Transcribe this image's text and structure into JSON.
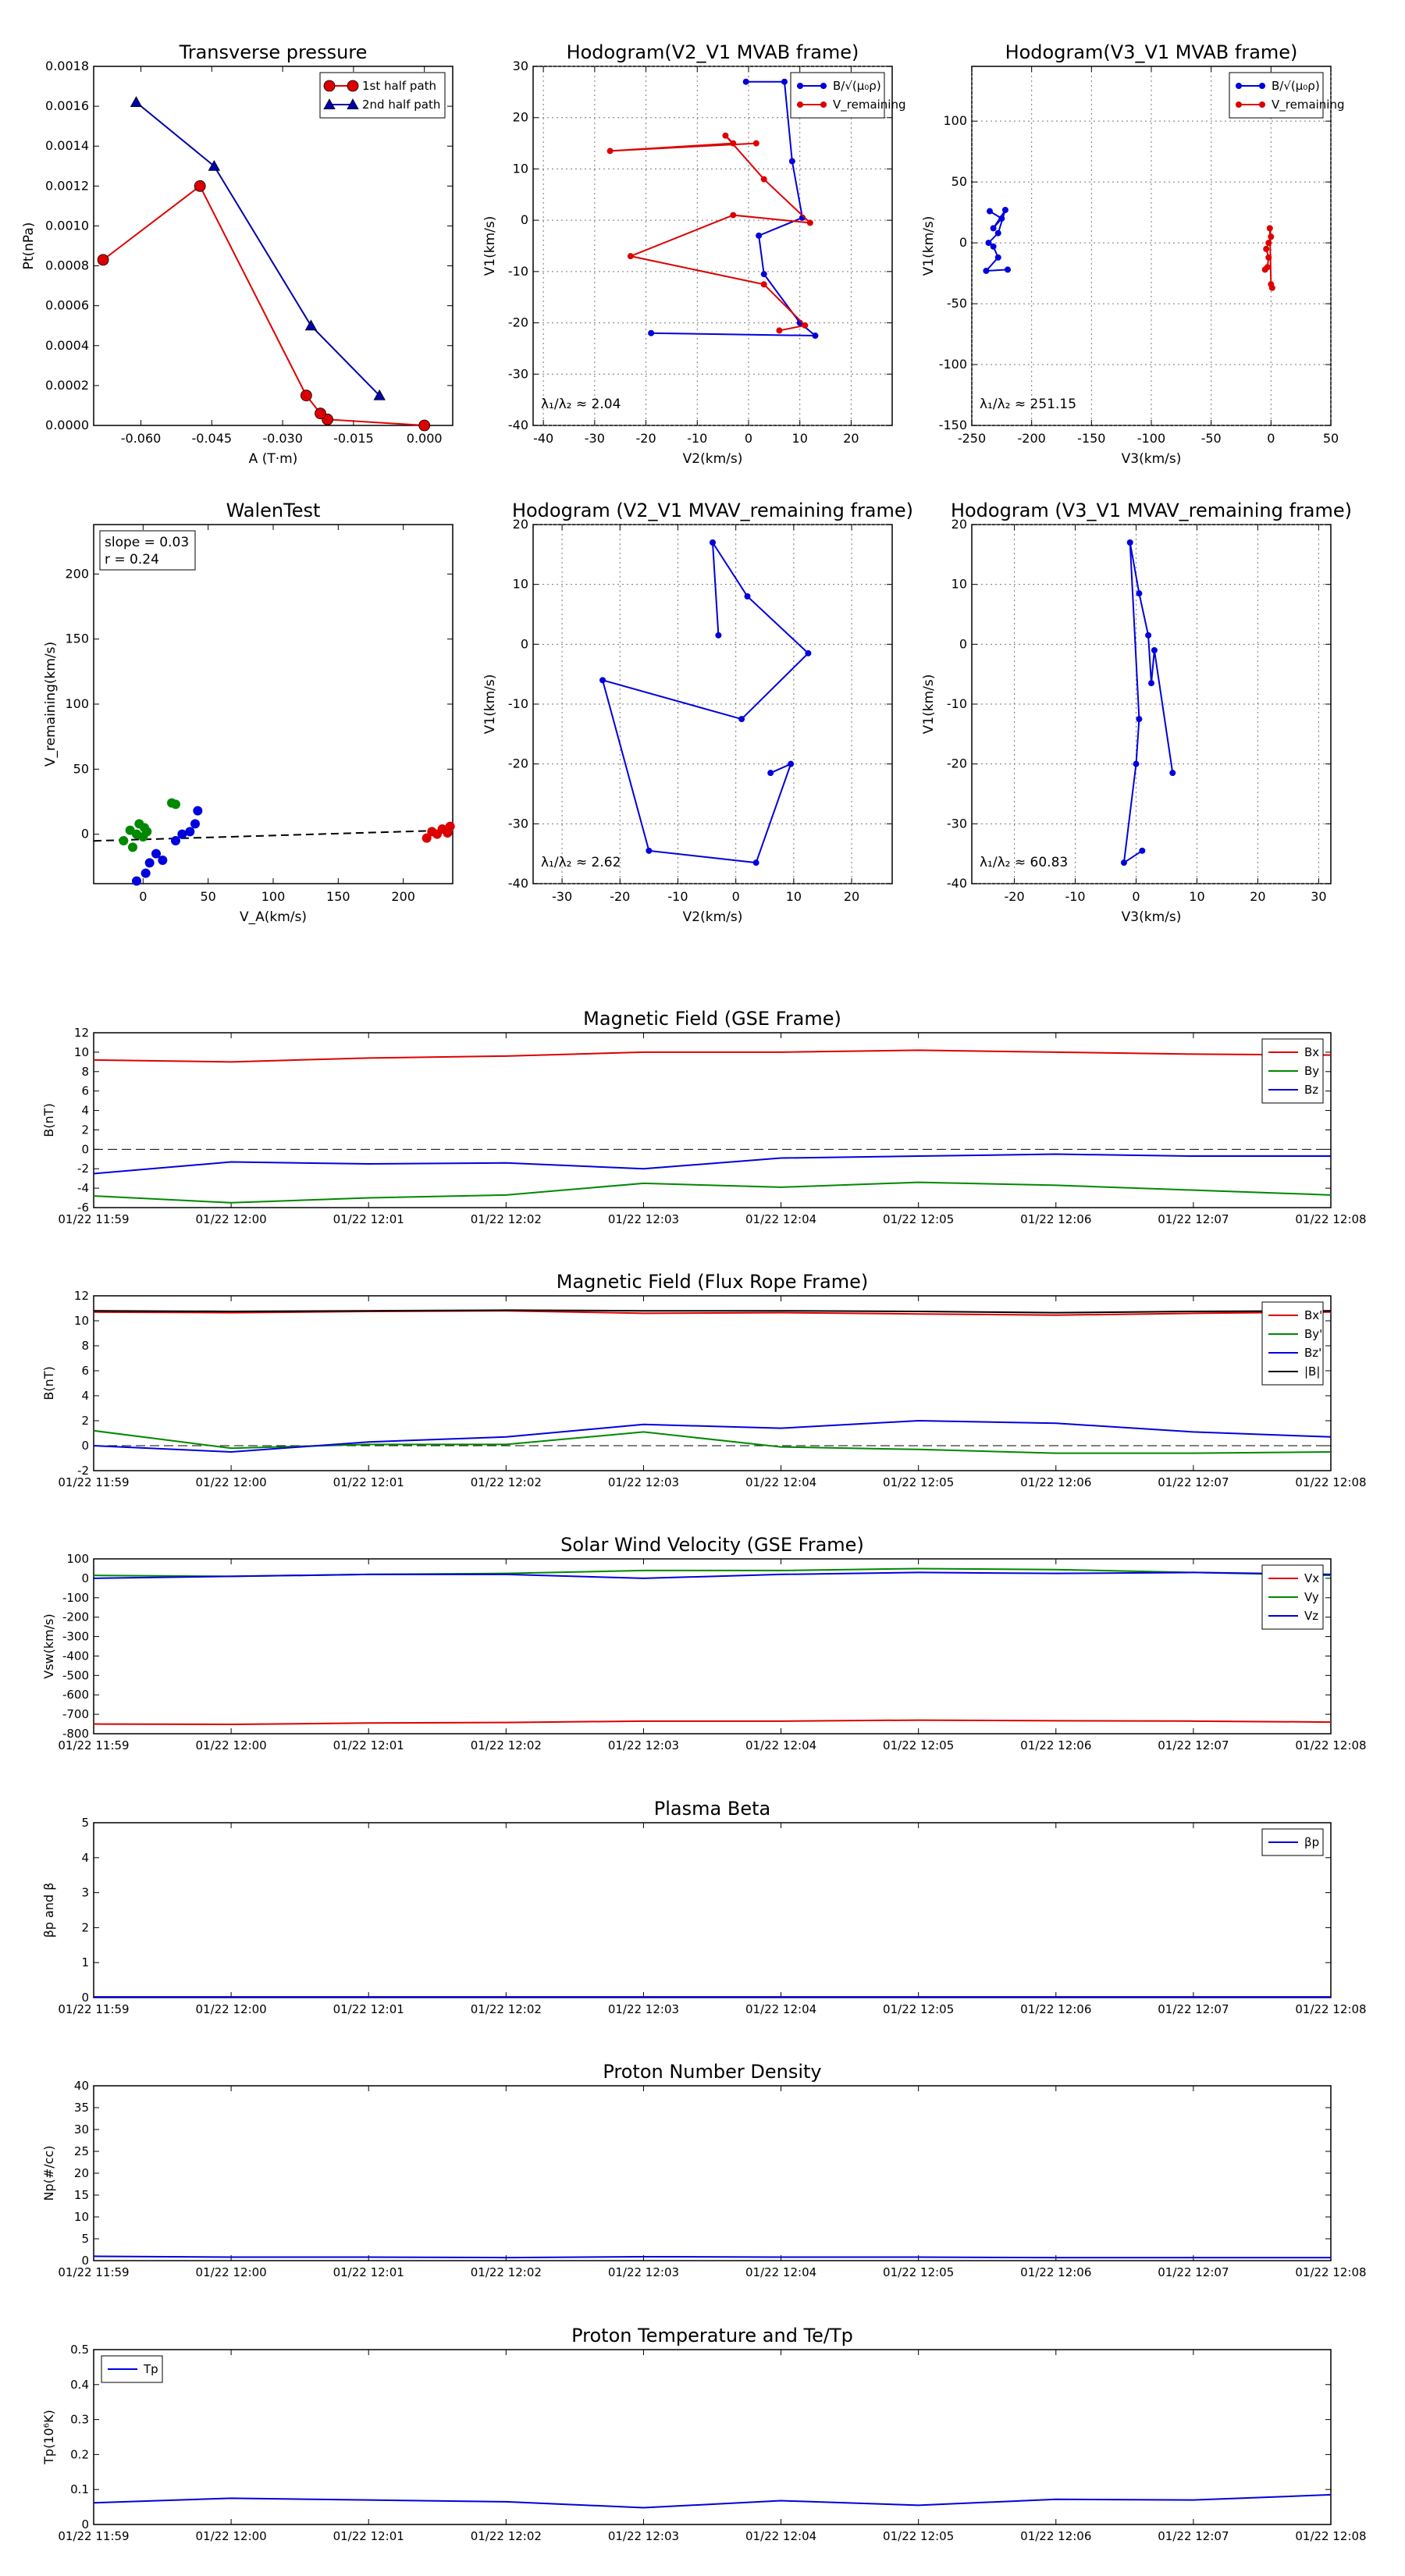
{
  "chart_data": [
    {
      "id": "tp",
      "type": "scatter",
      "title": "Transverse pressure",
      "xlabel": "A (T·m)",
      "ylabel": "Pt(nPa)",
      "xlim": [
        -0.07,
        0.006
      ],
      "ylim": [
        0,
        0.0018
      ],
      "xticks": [
        -0.06,
        -0.045,
        -0.03,
        -0.015,
        0.0
      ],
      "xticklabels": [
        "-0.060",
        "-0.045",
        "-0.030",
        "-0.015",
        "0.000"
      ],
      "yticks": [
        0,
        0.0002,
        0.0004,
        0.0006,
        0.0008,
        0.001,
        0.0012,
        0.0014,
        0.0016,
        0.0018
      ],
      "yticklabels": [
        "0.0000",
        "0.0002",
        "0.0004",
        "0.0006",
        "0.0008",
        "0.0010",
        "0.0012",
        "0.0014",
        "0.0016",
        "0.0018"
      ],
      "grid": false,
      "legend": "top-right",
      "series": [
        {
          "name": "1st half path",
          "color": "#dd0000",
          "marker": "circle",
          "x": [
            0.0,
            -0.0205,
            -0.022,
            -0.025,
            -0.0475,
            -0.068
          ],
          "y": [
            0.0,
            3e-05,
            6e-05,
            0.00015,
            0.0012,
            0.00083
          ]
        },
        {
          "name": "2nd half path",
          "color": "#0000aa",
          "marker": "triangle",
          "x": [
            -0.061,
            -0.0445,
            -0.024,
            -0.0095
          ],
          "y": [
            0.00162,
            0.0013,
            0.0005,
            0.00015
          ]
        }
      ]
    },
    {
      "id": "hodo12",
      "type": "line",
      "title": "Hodogram(V2_V1 MVAB frame)",
      "xlabel": "V2(km/s)",
      "ylabel": "V1(km/s)",
      "xlim": [
        -42,
        28
      ],
      "ylim": [
        -40,
        30
      ],
      "xticks": [
        -40,
        -30,
        -20,
        -10,
        0,
        10,
        20
      ],
      "yticks": [
        -40,
        -30,
        -20,
        -10,
        0,
        10,
        20,
        30
      ],
      "grid": true,
      "legend": "top-right",
      "annotation": "λ₁/λ₂ ≈ 2.04",
      "series": [
        {
          "name": "B/√(μ₀ρ)",
          "color": "#0000dd",
          "x": [
            -0.5,
            7,
            8.5,
            10.5,
            2,
            3,
            10,
            13,
            -19
          ],
          "y": [
            27,
            27,
            11.5,
            0.5,
            -3,
            -10.5,
            -20,
            -22.5,
            -22
          ]
        },
        {
          "name": "V_remaining",
          "color": "#dd0000",
          "x": [
            6,
            11,
            3,
            -23,
            -3,
            12,
            3,
            -4.5,
            -3,
            -27,
            1.5
          ],
          "y": [
            -21.5,
            -20.5,
            -12.5,
            -7,
            1,
            -0.5,
            8,
            16.5,
            15,
            13.5,
            15
          ]
        }
      ]
    },
    {
      "id": "hodo13",
      "type": "line",
      "title": "Hodogram(V3_V1 MVAB frame)",
      "xlabel": "V3(km/s)",
      "ylabel": "V1(km/s)",
      "xlim": [
        -250,
        50
      ],
      "ylim": [
        -150,
        145
      ],
      "xticks": [
        -250,
        -200,
        -150,
        -100,
        -50,
        0,
        50
      ],
      "yticks": [
        -150,
        -100,
        -50,
        0,
        50,
        100
      ],
      "grid": true,
      "legend": "top-right",
      "annotation": "λ₁/λ₂ ≈ 251.15",
      "series": [
        {
          "name": "B/√(μ₀ρ)",
          "color": "#0000dd",
          "x": [
            -235,
            -225,
            -232,
            -222,
            -228,
            -236,
            -232,
            -228,
            -238,
            -220
          ],
          "y": [
            26,
            20,
            12,
            27,
            8,
            0,
            -3,
            -12,
            -23,
            -22
          ]
        },
        {
          "name": "V_remaining",
          "color": "#dd0000",
          "x": [
            -5,
            -3,
            -2,
            -4,
            -2,
            0,
            -1,
            0,
            1
          ],
          "y": [
            -22,
            -20,
            -12,
            -5,
            0,
            5,
            12,
            -34,
            -37
          ]
        }
      ]
    },
    {
      "id": "walen",
      "type": "scatter",
      "title": "WalenTest",
      "xlabel": "V_A(km/s)",
      "ylabel": "V_remaining(km/s)",
      "xlim": [
        -38,
        238
      ],
      "ylim": [
        -38,
        238
      ],
      "xticks": [
        0,
        50,
        100,
        150,
        200
      ],
      "yticks": [
        0,
        50,
        100,
        150,
        200
      ],
      "grid": false,
      "slope_text": "slope = 0.03",
      "r_text": "r = 0.24",
      "fit": {
        "slope": 0.03,
        "intercept": -4
      },
      "series": [
        {
          "color": "#008800",
          "x": [
            -15,
            -10,
            -8,
            -5,
            -3,
            0,
            1,
            3,
            22,
            25
          ],
          "y": [
            -5,
            3,
            -10,
            0,
            8,
            -2,
            5,
            2,
            24,
            23
          ]
        },
        {
          "color": "#0000dd",
          "x": [
            -5,
            2,
            5,
            10,
            15,
            25,
            30,
            36,
            40,
            42
          ],
          "y": [
            -36,
            -30,
            -22,
            -15,
            -20,
            -5,
            0,
            2,
            8,
            18
          ]
        },
        {
          "color": "#dd0000",
          "x": [
            218,
            222,
            226,
            230,
            234,
            236
          ],
          "y": [
            -3,
            2,
            0,
            4,
            1,
            6
          ]
        }
      ]
    },
    {
      "id": "hodo12r",
      "type": "line",
      "title": "Hodogram (V2_V1 MVAV_remaining frame)",
      "xlabel": "V2(km/s)",
      "ylabel": "V1(km/s)",
      "xlim": [
        -35,
        27
      ],
      "ylim": [
        -40,
        20
      ],
      "xticks": [
        -30,
        -20,
        -10,
        0,
        10,
        20
      ],
      "yticks": [
        -40,
        -30,
        -20,
        -10,
        0,
        10,
        20
      ],
      "grid": true,
      "annotation": "λ₁/λ₂ ≈ 2.62",
      "series": [
        {
          "color": "#0000dd",
          "x": [
            6,
            9.5,
            3.5,
            -15,
            -23,
            1,
            12.5,
            2,
            -4,
            -3
          ],
          "y": [
            -21.5,
            -20,
            -36.5,
            -34.5,
            -6,
            -12.5,
            -1.5,
            8,
            17,
            1.5
          ]
        }
      ]
    },
    {
      "id": "hodo13r",
      "type": "line",
      "title": "Hodogram (V3_V1 MVAV_remaining frame)",
      "xlabel": "V3(km/s)",
      "ylabel": "V1(km/s)",
      "xlim": [
        -27,
        32
      ],
      "ylim": [
        -40,
        20
      ],
      "xticks": [
        -20,
        -10,
        0,
        10,
        20,
        30
      ],
      "yticks": [
        -40,
        -30,
        -20,
        -10,
        0,
        10,
        20
      ],
      "grid": true,
      "annotation": "λ₁/λ₂ ≈ 60.83",
      "series": [
        {
          "color": "#0000dd",
          "x": [
            6,
            3,
            2.5,
            2,
            0.5,
            -1,
            0.5,
            0,
            -2,
            1
          ],
          "y": [
            -21.5,
            -1,
            -6.5,
            1.5,
            8.5,
            17,
            -12.5,
            -20,
            -36.5,
            -34.5
          ]
        }
      ]
    },
    {
      "id": "bgse",
      "type": "line",
      "title": "Magnetic Field (GSE Frame)",
      "ylabel": "B(nT)",
      "x": [
        "01/22 11:59",
        "01/22 12:00",
        "01/22 12:01",
        "01/22 12:02",
        "01/22 12:03",
        "01/22 12:04",
        "01/22 12:05",
        "01/22 12:06",
        "01/22 12:07",
        "01/22 12:08"
      ],
      "ylim": [
        -6,
        12
      ],
      "yticks": [
        -6,
        -4,
        -2,
        0,
        2,
        4,
        6,
        8,
        10,
        12
      ],
      "zero_line": true,
      "legend": "top-right",
      "series": [
        {
          "name": "Bx",
          "color": "#dd0000",
          "values": [
            9.2,
            9.0,
            9.4,
            9.6,
            10.0,
            10.0,
            10.2,
            10.0,
            9.8,
            9.7
          ]
        },
        {
          "name": "By",
          "color": "#008800",
          "values": [
            -4.8,
            -5.5,
            -5.0,
            -4.7,
            -3.5,
            -3.9,
            -3.4,
            -3.7,
            -4.2,
            -4.7
          ]
        },
        {
          "name": "Bz",
          "color": "#0000dd",
          "values": [
            -2.5,
            -1.3,
            -1.5,
            -1.4,
            -2.0,
            -0.9,
            -0.7,
            -0.5,
            -0.7,
            -0.7
          ]
        }
      ]
    },
    {
      "id": "bfr",
      "type": "line",
      "title": "Magnetic Field (Flux Rope Frame)",
      "ylabel": "B(nT)",
      "x": [
        "01/22 11:59",
        "01/22 12:00",
        "01/22 12:01",
        "01/22 12:02",
        "01/22 12:03",
        "01/22 12:04",
        "01/22 12:05",
        "01/22 12:06",
        "01/22 12:07",
        "01/22 12:08"
      ],
      "ylim": [
        -2,
        12
      ],
      "yticks": [
        -2,
        0,
        2,
        4,
        6,
        8,
        10,
        12
      ],
      "zero_line": true,
      "legend": "top-right",
      "series": [
        {
          "name": "Bx'",
          "color": "#dd0000",
          "values": [
            10.7,
            10.65,
            10.75,
            10.8,
            10.6,
            10.65,
            10.55,
            10.45,
            10.6,
            10.7
          ]
        },
        {
          "name": "By'",
          "color": "#008800",
          "values": [
            1.2,
            -0.2,
            0.1,
            0.1,
            1.1,
            -0.1,
            -0.3,
            -0.6,
            -0.6,
            -0.5
          ]
        },
        {
          "name": "Bz'",
          "color": "#0000dd",
          "values": [
            0.0,
            -0.5,
            0.3,
            0.7,
            1.7,
            1.4,
            2.0,
            1.8,
            1.1,
            0.7
          ]
        },
        {
          "name": "|B|",
          "color": "#000000",
          "values": [
            10.8,
            10.75,
            10.8,
            10.85,
            10.8,
            10.8,
            10.75,
            10.65,
            10.75,
            10.8
          ]
        }
      ]
    },
    {
      "id": "vsw",
      "type": "line",
      "title": "Solar Wind Velocity (GSE Frame)",
      "ylabel": "Vsw(km/s)",
      "x": [
        "01/22 11:59",
        "01/22 12:00",
        "01/22 12:01",
        "01/22 12:02",
        "01/22 12:03",
        "01/22 12:04",
        "01/22 12:05",
        "01/22 12:06",
        "01/22 12:07",
        "01/22 12:08"
      ],
      "ylim": [
        -800,
        100
      ],
      "yticks": [
        -800,
        -700,
        -600,
        -500,
        -400,
        -300,
        -200,
        -100,
        0,
        100
      ],
      "legend": "top-right",
      "series": [
        {
          "name": "Vx",
          "color": "#dd0000",
          "values": [
            -750,
            -752,
            -745,
            -742,
            -735,
            -735,
            -730,
            -733,
            -735,
            -740
          ]
        },
        {
          "name": "Vy",
          "color": "#008800",
          "values": [
            15,
            10,
            20,
            25,
            40,
            40,
            50,
            45,
            30,
            15
          ]
        },
        {
          "name": "Vz",
          "color": "#0000dd",
          "values": [
            0,
            10,
            20,
            20,
            0,
            20,
            30,
            25,
            30,
            20
          ]
        }
      ]
    },
    {
      "id": "beta",
      "type": "line",
      "title": "Plasma Beta",
      "ylabel": "βp and β",
      "x": [
        "01/22 11:59",
        "01/22 12:00",
        "01/22 12:01",
        "01/22 12:02",
        "01/22 12:03",
        "01/22 12:04",
        "01/22 12:05",
        "01/22 12:06",
        "01/22 12:07",
        "01/22 12:08"
      ],
      "ylim": [
        0,
        5
      ],
      "yticks": [
        0,
        1,
        2,
        3,
        4,
        5
      ],
      "legend": "top-right",
      "series": [
        {
          "name": "βp",
          "color": "#0000dd",
          "values": [
            0.02,
            0.02,
            0.02,
            0.02,
            0.02,
            0.02,
            0.02,
            0.02,
            0.02,
            0.02
          ]
        }
      ]
    },
    {
      "id": "np",
      "type": "line",
      "title": "Proton Number Density",
      "ylabel": "Np(#/cc)",
      "x": [
        "01/22 11:59",
        "01/22 12:00",
        "01/22 12:01",
        "01/22 12:02",
        "01/22 12:03",
        "01/22 12:04",
        "01/22 12:05",
        "01/22 12:06",
        "01/22 12:07",
        "01/22 12:08"
      ],
      "ylim": [
        0,
        40
      ],
      "yticks": [
        0,
        5,
        10,
        15,
        20,
        25,
        30,
        35,
        40
      ],
      "series": [
        {
          "color": "#0000dd",
          "values": [
            1.0,
            0.8,
            0.8,
            0.7,
            0.9,
            0.8,
            0.8,
            0.7,
            0.7,
            0.7
          ]
        }
      ]
    },
    {
      "id": "tpp",
      "type": "line",
      "title": "Proton Temperature and Te/Tp",
      "ylabel": "Tp(10⁶K)",
      "x": [
        "01/22 11:59",
        "01/22 12:00",
        "01/22 12:01",
        "01/22 12:02",
        "01/22 12:03",
        "01/22 12:04",
        "01/22 12:05",
        "01/22 12:06",
        "01/22 12:07",
        "01/22 12:08"
      ],
      "ylim": [
        0,
        0.5
      ],
      "yticks": [
        0,
        0.1,
        0.2,
        0.3,
        0.4,
        0.5
      ],
      "legend": "top-left",
      "series": [
        {
          "name": "Tp",
          "color": "#0000dd",
          "values": [
            0.062,
            0.075,
            0.07,
            0.065,
            0.048,
            0.068,
            0.055,
            0.072,
            0.07,
            0.085
          ]
        }
      ]
    }
  ]
}
